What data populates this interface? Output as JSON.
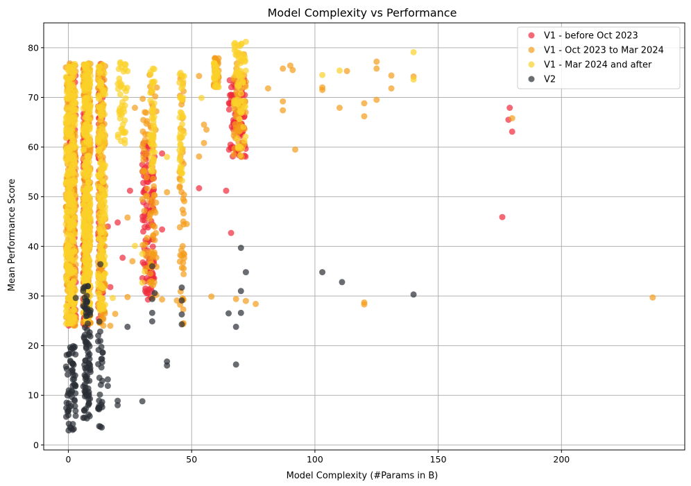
{
  "chart_data": {
    "type": "scatter",
    "title": "Model Complexity vs Performance",
    "xlabel": "Model Complexity (#Params in B)",
    "ylabel": "Mean Performance Score",
    "xlim": [
      -10,
      250
    ],
    "ylim": [
      -1,
      85
    ],
    "xticks": [
      0,
      50,
      100,
      150,
      200
    ],
    "yticks": [
      0,
      10,
      20,
      30,
      40,
      50,
      60,
      70,
      80
    ],
    "grid": true,
    "legend_position": "top-right",
    "series": [
      {
        "name": "V1 - before Oct 2023",
        "color": "#f0293b",
        "clusters": [
          {
            "x": [
              0,
              3
            ],
            "y": [
              24,
              75
            ],
            "n": 160
          },
          {
            "x": [
              6,
              8
            ],
            "y": [
              24,
              76
            ],
            "n": 170
          },
          {
            "x": [
              12,
              14
            ],
            "y": [
              25,
              77
            ],
            "n": 110
          },
          {
            "x": [
              30,
              35
            ],
            "y": [
              29,
              61
            ],
            "n": 110
          },
          {
            "x": [
              65,
              72
            ],
            "y": [
              58,
              74
            ],
            "n": 90
          }
        ],
        "points": [
          {
            "x": 176,
            "y": 45.9
          },
          {
            "x": 178.5,
            "y": 65.5
          },
          {
            "x": 179,
            "y": 67.9
          },
          {
            "x": 180,
            "y": 63.1
          },
          {
            "x": 66,
            "y": 42.7
          },
          {
            "x": 64,
            "y": 51.2
          },
          {
            "x": 53,
            "y": 51.7
          },
          {
            "x": 38,
            "y": 43.4
          },
          {
            "x": 38,
            "y": 58.7
          },
          {
            "x": 25,
            "y": 51.2
          },
          {
            "x": 22,
            "y": 37.7
          },
          {
            "x": 20,
            "y": 44.8
          },
          {
            "x": 16,
            "y": 44.0
          },
          {
            "x": 17,
            "y": 31.8
          },
          {
            "x": 34,
            "y": 35.9
          },
          {
            "x": 32,
            "y": 39.2
          },
          {
            "x": 31,
            "y": 45.2
          },
          {
            "x": 3,
            "y": 25.3
          }
        ]
      },
      {
        "name": "V1 - Oct 2023 to Mar 2024",
        "color": "#f59c1a",
        "clusters": [
          {
            "x": [
              -1,
              3
            ],
            "y": [
              24,
              77
            ],
            "n": 260
          },
          {
            "x": [
              6,
              9
            ],
            "y": [
              24,
              77
            ],
            "n": 230
          },
          {
            "x": [
              12,
              15
            ],
            "y": [
              24,
              77
            ],
            "n": 150
          },
          {
            "x": [
              30,
              36
            ],
            "y": [
              28,
              75
            ],
            "n": 90
          },
          {
            "x": [
              45,
              47
            ],
            "y": [
              24,
              75
            ],
            "n": 50
          },
          {
            "x": [
              59,
              61
            ],
            "y": [
              72,
              78
            ],
            "n": 30
          },
          {
            "x": [
              67,
              72
            ],
            "y": [
              58,
              79
            ],
            "n": 60
          }
        ],
        "points": [
          {
            "x": 237,
            "y": 29.7
          },
          {
            "x": 180,
            "y": 65.8
          },
          {
            "x": 140,
            "y": 74.2
          },
          {
            "x": 131,
            "y": 71.8
          },
          {
            "x": 131,
            "y": 74.4
          },
          {
            "x": 125,
            "y": 69.5
          },
          {
            "x": 125,
            "y": 75.8
          },
          {
            "x": 125,
            "y": 77.2
          },
          {
            "x": 120,
            "y": 68.8
          },
          {
            "x": 120,
            "y": 66.2
          },
          {
            "x": 120,
            "y": 28.3
          },
          {
            "x": 120,
            "y": 28.7
          },
          {
            "x": 113,
            "y": 75.3
          },
          {
            "x": 110,
            "y": 67.9
          },
          {
            "x": 103,
            "y": 72.0
          },
          {
            "x": 103,
            "y": 71.5
          },
          {
            "x": 92,
            "y": 59.5
          },
          {
            "x": 91,
            "y": 75.5
          },
          {
            "x": 90,
            "y": 76.4
          },
          {
            "x": 87,
            "y": 75.8
          },
          {
            "x": 87,
            "y": 69.2
          },
          {
            "x": 87,
            "y": 67.4
          },
          {
            "x": 81,
            "y": 71.8
          },
          {
            "x": 76,
            "y": 28.4
          },
          {
            "x": 72,
            "y": 29.0
          },
          {
            "x": 68,
            "y": 29.4
          },
          {
            "x": 58,
            "y": 29.9
          },
          {
            "x": 56,
            "y": 63.5
          },
          {
            "x": 55,
            "y": 64.5
          },
          {
            "x": 55,
            "y": 60.8
          },
          {
            "x": 53,
            "y": 58.1
          },
          {
            "x": 53,
            "y": 74.3
          },
          {
            "x": 48,
            "y": 44.5
          },
          {
            "x": 44,
            "y": 29.1
          },
          {
            "x": 40,
            "y": 50.9
          },
          {
            "x": 38,
            "y": 29.3
          },
          {
            "x": 26,
            "y": 37.0
          },
          {
            "x": 24,
            "y": 29.8
          },
          {
            "x": 24,
            "y": 45.8
          },
          {
            "x": 27,
            "y": 67.9
          },
          {
            "x": 17,
            "y": 24.0
          },
          {
            "x": 19,
            "y": 26.4
          }
        ]
      },
      {
        "name": "V1 - Mar 2024 and after",
        "color": "#fbd22a",
        "clusters": [
          {
            "x": [
              -1,
              3
            ],
            "y": [
              24,
              77
            ],
            "n": 320
          },
          {
            "x": [
              6,
              9
            ],
            "y": [
              25,
              77
            ],
            "n": 320
          },
          {
            "x": [
              12,
              15
            ],
            "y": [
              27,
              77
            ],
            "n": 170
          },
          {
            "x": [
              20,
              24
            ],
            "y": [
              60,
              78
            ],
            "n": 45
          },
          {
            "x": [
              33,
              35
            ],
            "y": [
              54,
              77
            ],
            "n": 50
          },
          {
            "x": [
              45,
              47
            ],
            "y": [
              53,
              75
            ],
            "n": 40
          },
          {
            "x": [
              59,
              61
            ],
            "y": [
              72,
              77
            ],
            "n": 25
          },
          {
            "x": [
              67,
              72
            ],
            "y": [
              58,
              81
            ],
            "n": 70
          }
        ],
        "points": [
          {
            "x": 140,
            "y": 79.1
          },
          {
            "x": 140,
            "y": 73.6
          },
          {
            "x": 110,
            "y": 75.4
          },
          {
            "x": 103,
            "y": 74.5
          },
          {
            "x": 72,
            "y": 81.2
          },
          {
            "x": 54,
            "y": 69.9
          },
          {
            "x": 40,
            "y": 58.0
          },
          {
            "x": 30,
            "y": 32.7
          },
          {
            "x": 30,
            "y": 38.5
          },
          {
            "x": 31,
            "y": 34.9
          },
          {
            "x": 22,
            "y": 62.9
          },
          {
            "x": 18,
            "y": 29.6
          },
          {
            "x": 15,
            "y": 34.5
          },
          {
            "x": 27,
            "y": 40.1
          }
        ]
      },
      {
        "name": "V2",
        "color": "#2a2d34",
        "clusters": [
          {
            "x": [
              -1,
              3
            ],
            "y": [
              2.5,
              20
            ],
            "n": 60
          },
          {
            "x": [
              6,
              9
            ],
            "y": [
              5,
              32
            ],
            "n": 90
          },
          {
            "x": [
              12,
              14
            ],
            "y": [
              3.5,
              25
            ],
            "n": 30
          }
        ],
        "points": [
          {
            "x": 140,
            "y": 30.3
          },
          {
            "x": 111,
            "y": 32.8
          },
          {
            "x": 103,
            "y": 34.8
          },
          {
            "x": 72,
            "y": 34.8
          },
          {
            "x": 70,
            "y": 39.7
          },
          {
            "x": 70,
            "y": 31.0
          },
          {
            "x": 70,
            "y": 26.6
          },
          {
            "x": 68,
            "y": 23.8
          },
          {
            "x": 68,
            "y": 16.2
          },
          {
            "x": 65,
            "y": 26.5
          },
          {
            "x": 46,
            "y": 31.7
          },
          {
            "x": 46,
            "y": 29.1
          },
          {
            "x": 46,
            "y": 26.3
          },
          {
            "x": 46,
            "y": 24.3
          },
          {
            "x": 40,
            "y": 16.8
          },
          {
            "x": 40,
            "y": 16.0
          },
          {
            "x": 35,
            "y": 30.6
          },
          {
            "x": 34,
            "y": 29.4
          },
          {
            "x": 34,
            "y": 26.6
          },
          {
            "x": 34,
            "y": 24.9
          },
          {
            "x": 34,
            "y": 36.0
          },
          {
            "x": 30,
            "y": 8.8
          },
          {
            "x": 24,
            "y": 23.8
          },
          {
            "x": 20,
            "y": 8.0
          },
          {
            "x": 20,
            "y": 8.9
          },
          {
            "x": 16,
            "y": 13.2
          },
          {
            "x": 16,
            "y": 11.9
          },
          {
            "x": 13,
            "y": 36.4
          },
          {
            "x": 13,
            "y": 3.7
          },
          {
            "x": 2,
            "y": 19.9
          },
          {
            "x": 2,
            "y": 14.1
          },
          {
            "x": 3,
            "y": 29.6
          }
        ]
      }
    ]
  }
}
